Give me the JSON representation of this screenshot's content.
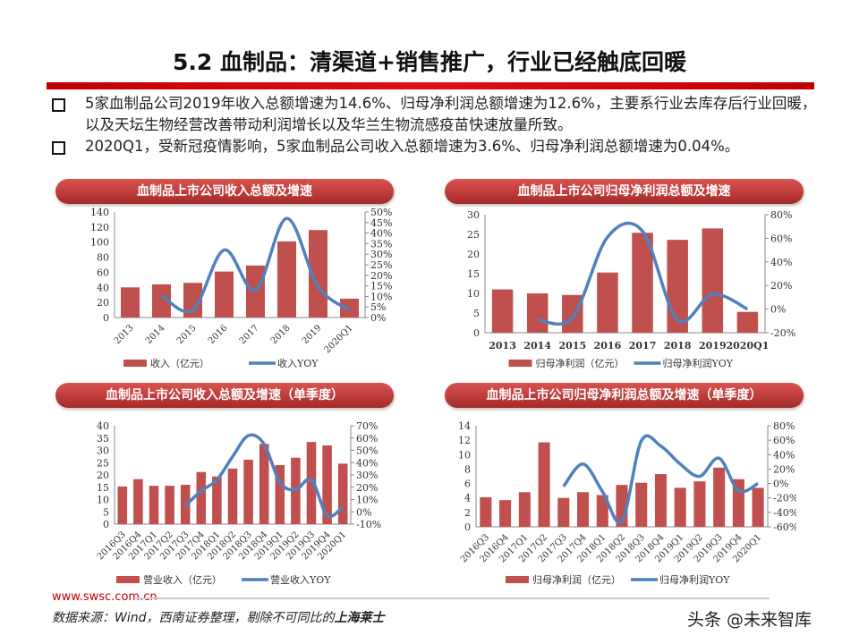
{
  "title": "5.2 血制品：清渠道+销售推广，行业已经触底回暖",
  "bullets": [
    "5家血制品公司2019年收入总额增速为14.6%、归母净利润总额增速为12.6%，主要系行业去库存后行业回暖，以及天坛生物经营改善带动利润增长以及华兰生物流感疫苗快速放量所致。",
    "2020Q1，受新冠疫情影响，5家血制品公司收入总额增速为3.6%、归母净利润总额增速为0.04%。"
  ],
  "footer": {
    "url": "www.swsc.com.cn",
    "source": "数据来源：Wind，西南证券整理，剔除不可同比的",
    "source_bold": "上海莱士",
    "watermark": "头条 @未来智库"
  },
  "colors": {
    "bar": "#c0504d",
    "line": "#4f81bd",
    "pill": "#b8312f"
  },
  "chart_data": [
    {
      "type": "bar+line",
      "title": "血制品上市公司收入总额及增速",
      "categories": [
        "2013",
        "2014",
        "2015",
        "2016",
        "2017",
        "2018",
        "2019",
        "2020Q1"
      ],
      "series": [
        {
          "name": "收入（亿元）",
          "type": "bar",
          "axis": "left",
          "values": [
            40,
            44,
            46,
            61,
            69,
            101,
            116,
            25
          ]
        },
        {
          "name": "收入YOY",
          "type": "line",
          "axis": "right",
          "values": [
            null,
            10.5,
            3.5,
            32,
            13,
            47,
            14.6,
            3.6
          ]
        }
      ],
      "ylim_left": [
        0,
        140
      ],
      "yticks_left": [
        "0",
        "20",
        "40",
        "60",
        "80",
        "100",
        "120",
        "140"
      ],
      "ylim_right": [
        0,
        50
      ],
      "yticks_right": [
        "0%",
        "5%",
        "10%",
        "15%",
        "20%",
        "25%",
        "30%",
        "35%",
        "40%",
        "45%",
        "50%"
      ],
      "rotated_labels": true,
      "legend": "bottom"
    },
    {
      "type": "bar+line",
      "title": "血制品上市公司归母净利润总额及增速",
      "categories": [
        "2013",
        "2014",
        "2015",
        "2016",
        "2017",
        "2018",
        "2019",
        "2020Q1"
      ],
      "series": [
        {
          "name": "归母净利润（亿元）",
          "type": "bar",
          "axis": "left",
          "values": [
            11,
            10,
            9.6,
            15.3,
            25.4,
            23.6,
            26.5,
            5.3
          ]
        },
        {
          "name": "归母净利润YOY",
          "type": "line",
          "axis": "right",
          "values": [
            null,
            -9,
            -7,
            61,
            66,
            -9,
            12.6,
            0.04
          ]
        }
      ],
      "ylim_left": [
        0,
        30
      ],
      "yticks_left": [
        "0",
        "5",
        "10",
        "15",
        "20",
        "25",
        "30"
      ],
      "ylim_right": [
        -20,
        80
      ],
      "yticks_right": [
        "-20%",
        "0%",
        "20%",
        "40%",
        "60%",
        "80%"
      ],
      "rotated_labels": false,
      "legend": "bottom"
    },
    {
      "type": "bar+line",
      "title": "血制品上市公司收入总额及增速（单季度）",
      "categories": [
        "2016Q3",
        "2016Q4",
        "2017Q1",
        "2017Q2",
        "2017Q3",
        "2017Q4",
        "2018Q1",
        "2018Q2",
        "2018Q3",
        "2018Q4",
        "2019Q1",
        "2019Q2",
        "2019Q3",
        "2019Q4",
        "2020Q1"
      ],
      "series": [
        {
          "name": "营业收入（亿元）",
          "type": "bar",
          "axis": "left",
          "values": [
            15.3,
            18.3,
            15.6,
            15.6,
            16,
            21.2,
            19.4,
            22.6,
            26.2,
            32.6,
            24,
            27,
            33.4,
            32,
            24.6
          ]
        },
        {
          "name": "营业收入YOY",
          "type": "line",
          "axis": "right",
          "values": [
            null,
            null,
            null,
            null,
            5,
            17,
            26,
            45,
            62,
            55,
            24,
            18,
            26,
            -3,
            4
          ]
        }
      ],
      "ylim_left": [
        0,
        40
      ],
      "yticks_left": [
        "0",
        "5",
        "10",
        "15",
        "20",
        "25",
        "30",
        "35",
        "40"
      ],
      "ylim_right": [
        -10,
        70
      ],
      "yticks_right": [
        "-10%",
        "0%",
        "10%",
        "20%",
        "30%",
        "40%",
        "50%",
        "60%",
        "70%"
      ],
      "rotated_labels": true,
      "legend": "bottom"
    },
    {
      "type": "bar+line",
      "title": "血制品上市公司归母净利润总额及增速（单季度）",
      "categories": [
        "2016Q3",
        "2016Q4",
        "2017Q1",
        "2017Q2",
        "2017Q3",
        "2017Q4",
        "2018Q1",
        "2018Q2",
        "2018Q3",
        "2018Q4",
        "2019Q1",
        "2019Q2",
        "2019Q3",
        "2019Q4",
        "2020Q1"
      ],
      "series": [
        {
          "name": "归母净利润（亿元）",
          "type": "bar",
          "axis": "left",
          "values": [
            4.1,
            3.7,
            4.8,
            11.7,
            4.0,
            4.8,
            4.4,
            5.8,
            6.1,
            7.3,
            5.4,
            6.3,
            8.2,
            6.6,
            5.4
          ]
        },
        {
          "name": "归母净利润YOY",
          "type": "line",
          "axis": "right",
          "values": [
            null,
            null,
            null,
            null,
            -4,
            27,
            -11,
            -52,
            59,
            52,
            27,
            10,
            35,
            -10,
            0
          ]
        }
      ],
      "ylim_left": [
        0,
        14
      ],
      "yticks_left": [
        "0",
        "2",
        "4",
        "6",
        "8",
        "10",
        "12",
        "14"
      ],
      "ylim_right": [
        -60,
        80
      ],
      "yticks_right": [
        "-60%",
        "-40%",
        "-20%",
        "0%",
        "20%",
        "40%",
        "60%",
        "80%"
      ],
      "rotated_labels": true,
      "legend": "bottom"
    }
  ]
}
